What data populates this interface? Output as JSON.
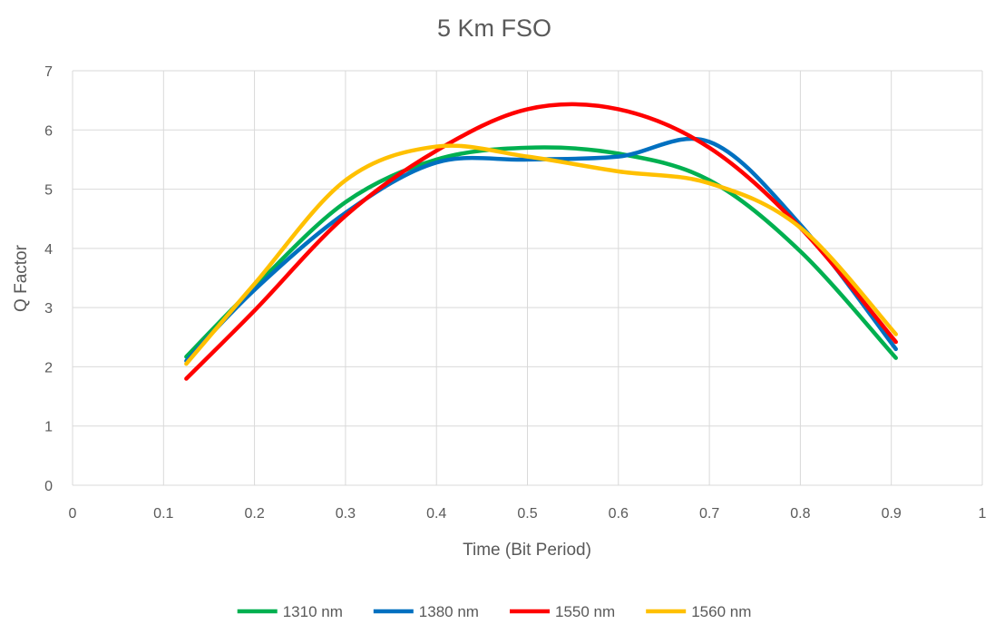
{
  "chart_data": {
    "type": "line",
    "title": "5 Km FSO",
    "xlabel": "Time (Bit Period)",
    "ylabel": "Q Factor",
    "xlim": [
      0,
      1
    ],
    "ylim": [
      0,
      7
    ],
    "xticks": [
      "0",
      "0.1",
      "0.2",
      "0.3",
      "0.4",
      "0.5",
      "0.6",
      "0.7",
      "0.8",
      "0.9",
      "1"
    ],
    "yticks": [
      "0",
      "1",
      "2",
      "3",
      "4",
      "5",
      "6",
      "7"
    ],
    "grid": true,
    "legend_position": "bottom",
    "smooth": true,
    "series": [
      {
        "name": "1310 nm",
        "color": "#00b050",
        "points": [
          [
            0.125,
            2.17
          ],
          [
            0.2,
            3.35
          ],
          [
            0.3,
            4.78
          ],
          [
            0.4,
            5.5
          ],
          [
            0.5,
            5.7
          ],
          [
            0.6,
            5.6
          ],
          [
            0.7,
            5.15
          ],
          [
            0.8,
            3.95
          ],
          [
            0.905,
            2.15
          ]
        ]
      },
      {
        "name": "1380 nm",
        "color": "#0070c0",
        "points": [
          [
            0.125,
            2.1
          ],
          [
            0.2,
            3.3
          ],
          [
            0.3,
            4.6
          ],
          [
            0.4,
            5.45
          ],
          [
            0.5,
            5.5
          ],
          [
            0.6,
            5.55
          ],
          [
            0.7,
            5.8
          ],
          [
            0.8,
            4.4
          ],
          [
            0.905,
            2.3
          ]
        ]
      },
      {
        "name": "1550 nm",
        "color": "#ff0000",
        "points": [
          [
            0.125,
            1.8
          ],
          [
            0.2,
            2.95
          ],
          [
            0.3,
            4.55
          ],
          [
            0.4,
            5.65
          ],
          [
            0.5,
            6.35
          ],
          [
            0.6,
            6.35
          ],
          [
            0.7,
            5.7
          ],
          [
            0.8,
            4.35
          ],
          [
            0.905,
            2.42
          ]
        ]
      },
      {
        "name": "1560 nm",
        "color": "#ffc000",
        "points": [
          [
            0.125,
            2.05
          ],
          [
            0.2,
            3.4
          ],
          [
            0.3,
            5.15
          ],
          [
            0.4,
            5.72
          ],
          [
            0.5,
            5.55
          ],
          [
            0.6,
            5.3
          ],
          [
            0.7,
            5.1
          ],
          [
            0.8,
            4.35
          ],
          [
            0.905,
            2.55
          ]
        ]
      }
    ]
  }
}
